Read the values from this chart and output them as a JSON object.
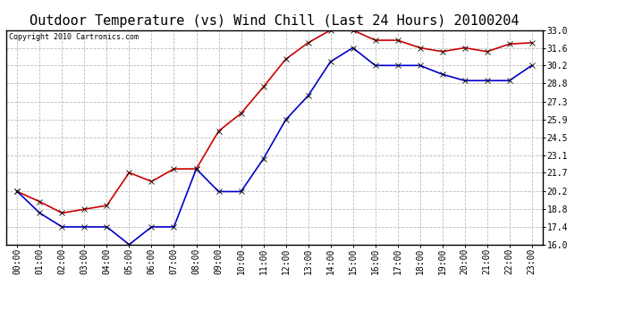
{
  "title": "Outdoor Temperature (vs) Wind Chill (Last 24 Hours) 20100204",
  "copyright": "Copyright 2010 Cartronics.com",
  "x_labels": [
    "00:00",
    "01:00",
    "02:00",
    "03:00",
    "04:00",
    "05:00",
    "06:00",
    "07:00",
    "08:00",
    "09:00",
    "10:00",
    "11:00",
    "12:00",
    "13:00",
    "14:00",
    "15:00",
    "16:00",
    "17:00",
    "18:00",
    "19:00",
    "20:00",
    "21:00",
    "22:00",
    "23:00"
  ],
  "temp_red": [
    20.2,
    19.4,
    18.5,
    18.8,
    19.1,
    21.7,
    21.0,
    22.0,
    22.0,
    25.0,
    26.4,
    28.5,
    30.7,
    32.0,
    33.0,
    33.0,
    32.2,
    32.2,
    31.6,
    31.3,
    31.6,
    31.3,
    31.9,
    32.0
  ],
  "wind_blue": [
    20.2,
    18.5,
    17.4,
    17.4,
    17.4,
    16.0,
    17.4,
    17.4,
    22.0,
    20.2,
    20.2,
    22.8,
    25.9,
    27.8,
    30.5,
    31.6,
    30.2,
    30.2,
    30.2,
    29.5,
    29.0,
    29.0,
    29.0,
    30.2
  ],
  "ylim": [
    16.0,
    33.0
  ],
  "yticks": [
    16.0,
    17.4,
    18.8,
    20.2,
    21.7,
    23.1,
    24.5,
    25.9,
    27.3,
    28.8,
    30.2,
    31.6,
    33.0
  ],
  "red_color": "#cc0000",
  "blue_color": "#0000cc",
  "grid_color": "#bbbbbb",
  "bg_color": "#ffffff",
  "plot_bg": "#ffffff",
  "title_fontsize": 11,
  "label_fontsize": 7,
  "copyright_fontsize": 6,
  "marker": "x",
  "marker_size": 4,
  "linewidth": 1.2
}
